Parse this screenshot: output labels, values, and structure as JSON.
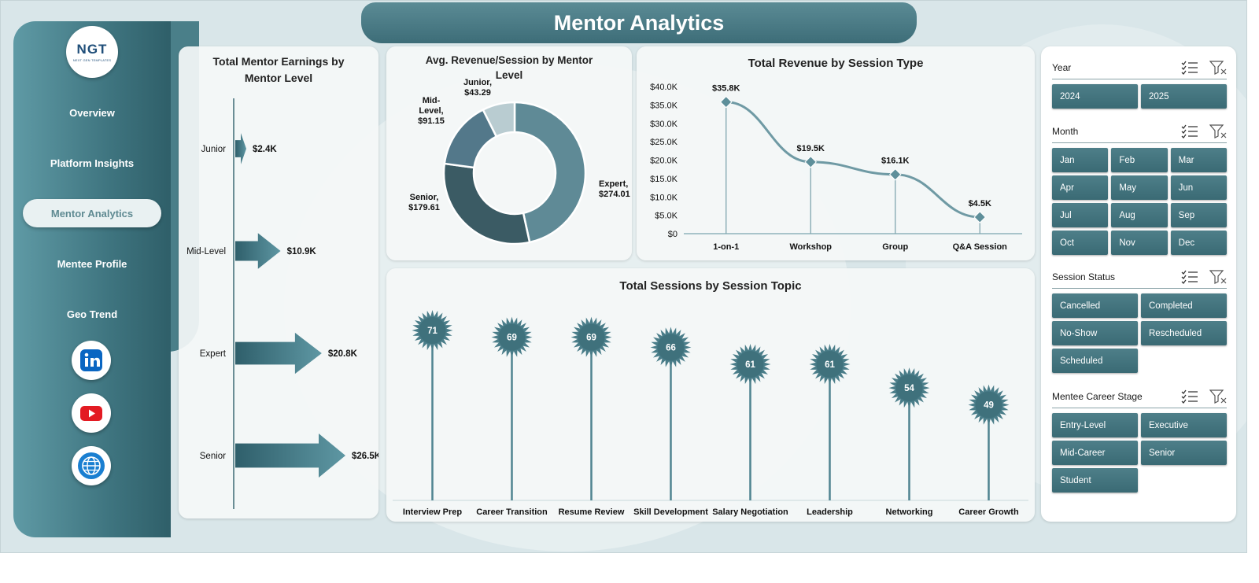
{
  "header": {
    "title": "Mentor Analytics"
  },
  "logo": {
    "mark": "NGT",
    "tagline": "NEXT GEN TEMPLATES"
  },
  "nav": {
    "items": [
      {
        "label": "Overview"
      },
      {
        "label": "Platform Insights"
      },
      {
        "label": "Mentor Analytics",
        "active": true
      },
      {
        "label": "Mentee Profile"
      },
      {
        "label": "Geo Trend"
      }
    ],
    "social": [
      "linkedin-icon",
      "youtube-icon",
      "globe-icon"
    ]
  },
  "colors": {
    "accent": "#3f7580",
    "accent_light": "#5f9aa5",
    "sidebar_dark": "#2f5f69",
    "youtube": "#e31b23",
    "linkedin": "#0a66c2"
  },
  "slicers": {
    "year": {
      "title": "Year",
      "options": [
        "2024",
        "2025"
      ]
    },
    "month": {
      "title": "Month",
      "options": [
        "Jan",
        "Feb",
        "Mar",
        "Apr",
        "May",
        "Jun",
        "Jul",
        "Aug",
        "Sep",
        "Oct",
        "Nov",
        "Dec"
      ]
    },
    "session_status": {
      "title": "Session Status",
      "options": [
        "Cancelled",
        "Completed",
        "No-Show",
        "Rescheduled",
        "Scheduled"
      ]
    },
    "career_stage": {
      "title": "Mentee Career Stage",
      "options": [
        "Entry-Level",
        "Executive",
        "Mid-Career",
        "Senior",
        "Student"
      ]
    }
  },
  "chart_data": [
    {
      "id": "earnings",
      "type": "bar",
      "title": "Total Mentor Earnings by Mentor Level",
      "orientation": "horizontal",
      "categories": [
        "Junior",
        "Mid-Level",
        "Expert",
        "Senior"
      ],
      "values": [
        2.4,
        10.9,
        20.8,
        26.5
      ],
      "labels": [
        "$2.4K",
        "$10.9K",
        "$20.8K",
        "$26.5K"
      ],
      "unit": "$K"
    },
    {
      "id": "avg_revenue",
      "type": "pie",
      "title": "Avg. Revenue/Session by Mentor Level",
      "donut": true,
      "slices": [
        {
          "name": "Expert",
          "value": 274.01,
          "label": "$274.01",
          "color": "#5f8a96"
        },
        {
          "name": "Senior",
          "value": 179.61,
          "label": "$179.61",
          "color": "#3b5b64"
        },
        {
          "name": "Mid-Level",
          "value": 91.15,
          "label": "$91.15",
          "color": "#53788a"
        },
        {
          "name": "Junior",
          "value": 43.29,
          "label": "$43.29",
          "color": "#b9ccd1"
        }
      ]
    },
    {
      "id": "revenue_type",
      "type": "line",
      "title": "Total Revenue  by Session Type",
      "categories": [
        "1-on-1",
        "Workshop",
        "Group",
        "Q&A Session"
      ],
      "values": [
        35.8,
        19.5,
        16.1,
        4.5
      ],
      "labels": [
        "$35.8K",
        "$19.5K",
        "$16.1K",
        "$4.5K"
      ],
      "yticks": [
        "$0",
        "$5.0K",
        "$10.0K",
        "$15.0K",
        "$20.0K",
        "$25.0K",
        "$30.0K",
        "$35.0K",
        "$40.0K"
      ],
      "ylim": [
        0,
        40
      ],
      "grid": false
    },
    {
      "id": "sessions_topic",
      "type": "bar",
      "title": "Total Sessions by Session Topic",
      "style": "lollipop",
      "categories": [
        "Interview Prep",
        "Career Transition",
        "Resume Review",
        "Skill Development",
        "Salary Negotiation",
        "Leadership",
        "Networking",
        "Career Growth"
      ],
      "values": [
        71,
        69,
        69,
        66,
        61,
        61,
        54,
        49
      ]
    }
  ]
}
